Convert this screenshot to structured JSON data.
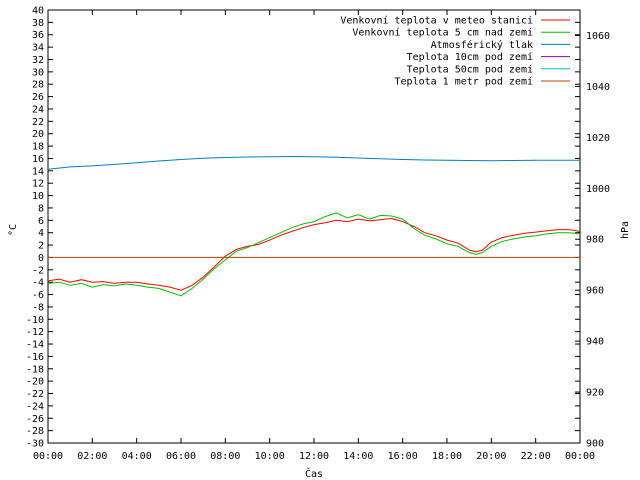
{
  "chart_data": {
    "type": "line",
    "xlabel": "Čas",
    "ylabel_left": "°C",
    "ylabel_right": "hPa",
    "x_ticks": [
      "00:00",
      "02:00",
      "04:00",
      "06:00",
      "08:00",
      "10:00",
      "12:00",
      "14:00",
      "16:00",
      "18:00",
      "20:00",
      "22:00",
      "00:00"
    ],
    "xlim_hours": [
      0,
      24
    ],
    "ylim_left": [
      -30,
      40
    ],
    "y_ticks_left_step": 2,
    "ylim_right": [
      900,
      1070
    ],
    "y_ticks_right": [
      900,
      920,
      940,
      960,
      980,
      1000,
      1020,
      1040,
      1060
    ],
    "grid": false,
    "legend_position": "top-right",
    "series": [
      {
        "name": "Venkovní teplota v meteo stanici",
        "color": "#ff0000",
        "axis": "left",
        "points": [
          [
            0,
            -3.8
          ],
          [
            0.5,
            -3.5
          ],
          [
            1,
            -4.0
          ],
          [
            1.5,
            -3.6
          ],
          [
            2,
            -4.0
          ],
          [
            2.5,
            -3.9
          ],
          [
            3,
            -4.2
          ],
          [
            3.5,
            -4.0
          ],
          [
            4,
            -4.0
          ],
          [
            4.5,
            -4.3
          ],
          [
            5,
            -4.5
          ],
          [
            5.5,
            -4.8
          ],
          [
            6,
            -5.3
          ],
          [
            6.5,
            -4.5
          ],
          [
            7,
            -3.2
          ],
          [
            7.5,
            -1.5
          ],
          [
            8,
            0.2
          ],
          [
            8.5,
            1.3
          ],
          [
            9,
            1.8
          ],
          [
            9.5,
            2.1
          ],
          [
            10,
            2.8
          ],
          [
            10.5,
            3.6
          ],
          [
            11,
            4.2
          ],
          [
            11.5,
            4.8
          ],
          [
            12,
            5.3
          ],
          [
            12.5,
            5.6
          ],
          [
            13,
            6.0
          ],
          [
            13.5,
            5.8
          ],
          [
            14,
            6.2
          ],
          [
            14.5,
            5.9
          ],
          [
            15,
            6.1
          ],
          [
            15.5,
            6.3
          ],
          [
            16,
            5.8
          ],
          [
            16.5,
            5.0
          ],
          [
            17,
            4.0
          ],
          [
            17.5,
            3.5
          ],
          [
            18,
            2.8
          ],
          [
            18.5,
            2.3
          ],
          [
            19,
            1.2
          ],
          [
            19.3,
            0.9
          ],
          [
            19.6,
            1.2
          ],
          [
            20,
            2.5
          ],
          [
            20.5,
            3.2
          ],
          [
            21,
            3.6
          ],
          [
            21.5,
            3.9
          ],
          [
            22,
            4.1
          ],
          [
            22.5,
            4.3
          ],
          [
            23,
            4.5
          ],
          [
            23.5,
            4.5
          ],
          [
            24,
            4.2
          ]
        ]
      },
      {
        "name": "Venkovní teplota 5 cm nad zemí",
        "color": "#00c000",
        "axis": "left",
        "points": [
          [
            0,
            -4.2
          ],
          [
            0.5,
            -4.0
          ],
          [
            1,
            -4.5
          ],
          [
            1.5,
            -4.2
          ],
          [
            2,
            -4.8
          ],
          [
            2.5,
            -4.4
          ],
          [
            3,
            -4.6
          ],
          [
            3.5,
            -4.3
          ],
          [
            4,
            -4.5
          ],
          [
            4.5,
            -4.8
          ],
          [
            5,
            -5.0
          ],
          [
            5.5,
            -5.6
          ],
          [
            6,
            -6.2
          ],
          [
            6.5,
            -5.0
          ],
          [
            7,
            -3.5
          ],
          [
            7.5,
            -1.8
          ],
          [
            8,
            -0.4
          ],
          [
            8.5,
            1.0
          ],
          [
            9,
            1.6
          ],
          [
            9.5,
            2.4
          ],
          [
            10,
            3.2
          ],
          [
            10.5,
            4.0
          ],
          [
            11,
            4.8
          ],
          [
            11.5,
            5.4
          ],
          [
            12,
            5.8
          ],
          [
            12.5,
            6.6
          ],
          [
            13,
            7.2
          ],
          [
            13.5,
            6.4
          ],
          [
            14,
            6.9
          ],
          [
            14.5,
            6.2
          ],
          [
            15,
            6.8
          ],
          [
            15.5,
            6.7
          ],
          [
            16,
            6.2
          ],
          [
            16.5,
            4.7
          ],
          [
            17,
            3.6
          ],
          [
            17.5,
            3.0
          ],
          [
            18,
            2.2
          ],
          [
            18.5,
            1.8
          ],
          [
            19,
            0.8
          ],
          [
            19.3,
            0.5
          ],
          [
            19.6,
            0.8
          ],
          [
            20,
            1.8
          ],
          [
            20.5,
            2.6
          ],
          [
            21,
            3.0
          ],
          [
            21.5,
            3.3
          ],
          [
            22,
            3.5
          ],
          [
            22.5,
            3.8
          ],
          [
            23,
            4.0
          ],
          [
            23.5,
            4.0
          ],
          [
            24,
            3.8
          ]
        ]
      },
      {
        "name": "Atmosférický tlak",
        "color": "#0080c0",
        "axis": "right",
        "points": [
          [
            0,
            1007.5
          ],
          [
            1,
            1008.4
          ],
          [
            2,
            1008.8
          ],
          [
            3,
            1009.4
          ],
          [
            4,
            1010.0
          ],
          [
            5,
            1010.7
          ],
          [
            6,
            1011.3
          ],
          [
            7,
            1011.8
          ],
          [
            8,
            1012.1
          ],
          [
            9,
            1012.3
          ],
          [
            10,
            1012.4
          ],
          [
            11,
            1012.5
          ],
          [
            12,
            1012.4
          ],
          [
            13,
            1012.2
          ],
          [
            14,
            1011.9
          ],
          [
            15,
            1011.6
          ],
          [
            16,
            1011.3
          ],
          [
            17,
            1011.1
          ],
          [
            18,
            1011.0
          ],
          [
            19,
            1010.9
          ],
          [
            20,
            1010.8
          ],
          [
            21,
            1010.9
          ],
          [
            22,
            1011.0
          ],
          [
            23,
            1011.0
          ],
          [
            24,
            1011.0
          ]
        ]
      },
      {
        "name": "Teplota 10cm pod zemí",
        "color": "#8000c0",
        "axis": "left",
        "points": []
      },
      {
        "name": "Teplota 50cm pod zemí",
        "color": "#00c0c0",
        "axis": "left",
        "points": []
      },
      {
        "name": "Teplota 1 metr pod zemí",
        "color": "#c04000",
        "axis": "left",
        "points": [
          [
            0,
            0
          ],
          [
            24,
            0
          ]
        ]
      }
    ]
  }
}
